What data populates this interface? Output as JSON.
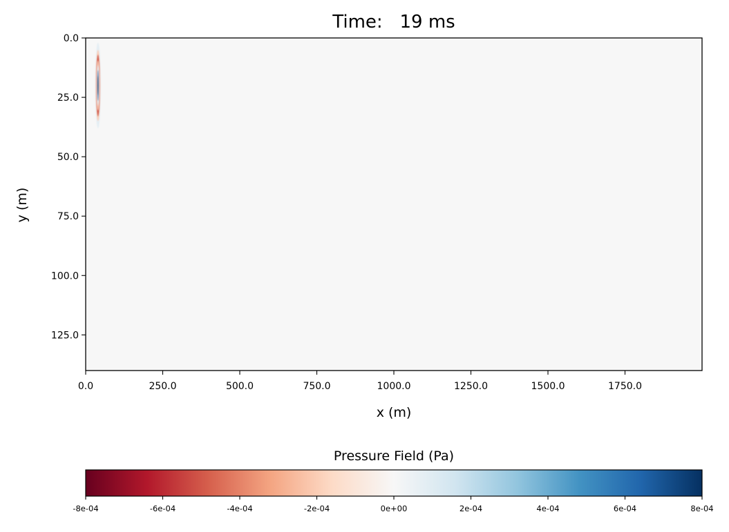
{
  "chart_data": {
    "type": "heatmap",
    "title": "Time:   19 ms",
    "xlabel": "x (m)",
    "ylabel": "y (m)",
    "xlim": [
      0,
      2000
    ],
    "ylim": [
      140,
      0
    ],
    "x_ticks": [
      0,
      250,
      500,
      750,
      1000,
      1250,
      1500,
      1750
    ],
    "x_tick_labels": [
      "0.0",
      "250.0",
      "500.0",
      "750.0",
      "1000.0",
      "1250.0",
      "1500.0",
      "1750.0"
    ],
    "y_ticks": [
      0,
      25,
      50,
      75,
      100,
      125
    ],
    "y_tick_labels": [
      "0.0",
      "25.0",
      "50.0",
      "75.0",
      "100.0",
      "125.0"
    ],
    "colorbar": {
      "label": "Pressure Field (Pa)",
      "colormap": "RdBu",
      "range": [
        -0.0008,
        0.0008
      ],
      "ticks": [
        -0.0008,
        -0.0006,
        -0.0004,
        -0.0002,
        0,
        0.0002,
        0.0004,
        0.0006,
        0.0008
      ],
      "tick_labels": [
        "-8e-04",
        "-6e-04",
        "-4e-04",
        "-2e-04",
        "0e+00",
        "2e-04",
        "4e-04",
        "6e-04",
        "8e-04"
      ],
      "orientation": "horizontal"
    },
    "wavefront": {
      "center_x": 40,
      "center_y": 20,
      "rings": [
        {
          "radius_y": 18,
          "radius_x": 9,
          "value": 8e-05
        },
        {
          "radius_y": 15,
          "radius_x": 7.5,
          "value": -0.0002
        },
        {
          "radius_y": 13,
          "radius_x": 6.3,
          "value": -0.0005
        },
        {
          "radius_y": 10.5,
          "radius_x": 5,
          "value": -0.0002
        },
        {
          "radius_y": 8.5,
          "radius_x": 3.8,
          "value": 0.0001
        },
        {
          "radius_y": 6.5,
          "radius_x": 2.7,
          "value": 0.0005
        },
        {
          "radius_y": 4,
          "radius_x": 1.6,
          "value": 0.0008
        }
      ],
      "background_value": 0
    }
  }
}
